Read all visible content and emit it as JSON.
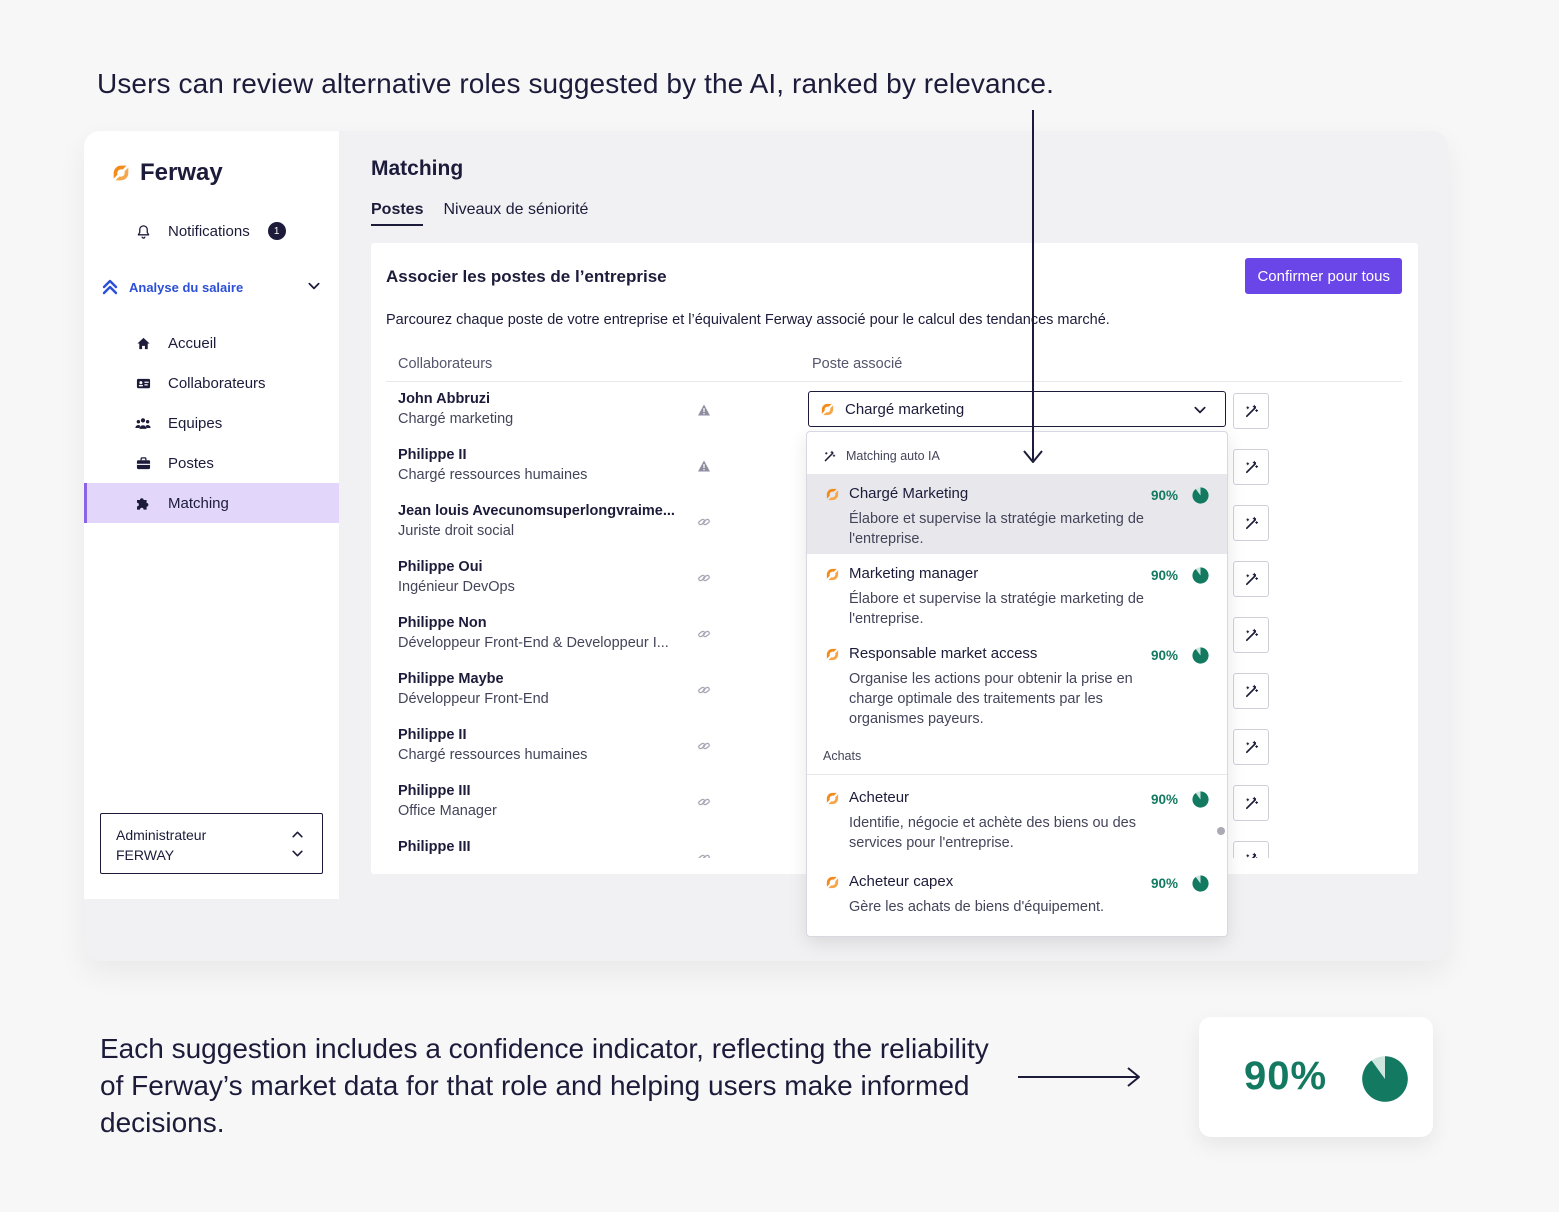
{
  "annotations": {
    "top": "Users can review alternative roles suggested by the AI, ranked by relevance.",
    "bottom": "Each suggestion includes a confidence indicator, reflecting the reliability of Ferway’s market data for that role and helping users make informed decisions."
  },
  "brand": {
    "name": "Ferway",
    "accent": "#f28a1c",
    "primary": "#6a45e8",
    "confidence_color": "#137a61"
  },
  "sidebar": {
    "notifications": {
      "label": "Notifications",
      "count": "1"
    },
    "section": {
      "label": "Analyse du salaire"
    },
    "items": [
      {
        "label": "Accueil",
        "icon": "home-icon"
      },
      {
        "label": "Collaborateurs",
        "icon": "id-card-icon"
      },
      {
        "label": "Equipes",
        "icon": "team-icon"
      },
      {
        "label": "Postes",
        "icon": "briefcase-icon"
      },
      {
        "label": "Matching",
        "icon": "puzzle-icon",
        "active": true
      }
    ],
    "account": {
      "line1": "Administrateur",
      "line2": "FERWAY"
    }
  },
  "main": {
    "title": "Matching",
    "tabs": [
      {
        "label": "Postes",
        "active": true
      },
      {
        "label": "Niveaux de séniorité"
      }
    ],
    "card": {
      "title": "Associer les postes de l’entreprise",
      "confirm_label": "Confirmer pour tous",
      "description": "Parcourez chaque poste de votre entreprise et l’équivalent Ferway associé pour le calcul des tendances marché.",
      "columns": {
        "collaborators": "Collaborateurs",
        "associated": "Poste associé"
      }
    },
    "rows": [
      {
        "name": "John Abbruzi",
        "role": "Chargé marketing",
        "status": "warning"
      },
      {
        "name": "Philippe II",
        "role": "Chargé ressources humaines",
        "status": "warning"
      },
      {
        "name": "Jean louis Avecunomsuperlongvraime...",
        "role": "Juriste droit social",
        "status": "link"
      },
      {
        "name": "Philippe Oui",
        "role": "Ingénieur DevOps",
        "status": "link"
      },
      {
        "name": "Philippe Non",
        "role": "Développeur Front-End & Developpeur I...",
        "status": "link"
      },
      {
        "name": "Philippe Maybe",
        "role": "Développeur Front-End",
        "status": "link"
      },
      {
        "name": "Philippe II",
        "role": "Chargé ressources humaines",
        "status": "link"
      },
      {
        "name": "Philippe III",
        "role": "Office Manager",
        "status": "link"
      },
      {
        "name": "Philippe III",
        "role": "",
        "status": "link"
      }
    ],
    "select": {
      "value": "Chargé marketing"
    },
    "dropdown": {
      "group_ai": "Matching auto IA",
      "group_achats": "Achats",
      "items": [
        {
          "title": "Chargé Marketing",
          "desc": "Élabore et supervise la stratégie marketing de l'entreprise.",
          "confidence": "90%",
          "confidence_value": 0.9
        },
        {
          "title": "Marketing manager",
          "desc": "Élabore et supervise la stratégie marketing de l'entreprise.",
          "confidence": "90%",
          "confidence_value": 0.9
        },
        {
          "title": "Responsable market access",
          "desc": "Organise les actions pour obtenir la prise en charge optimale des traitements par les organismes payeurs.",
          "confidence": "90%",
          "confidence_value": 0.9
        },
        {
          "title": "Acheteur",
          "desc": "Identifie, négocie et achète des biens ou des services pour l'entreprise.",
          "confidence": "90%",
          "confidence_value": 0.9
        },
        {
          "title": "Acheteur capex",
          "desc": "Gère les achats de biens d'équipement.",
          "confidence": "90%",
          "confidence_value": 0.9
        }
      ]
    }
  },
  "confidence_example": {
    "value": "90%",
    "fraction": 0.9
  }
}
